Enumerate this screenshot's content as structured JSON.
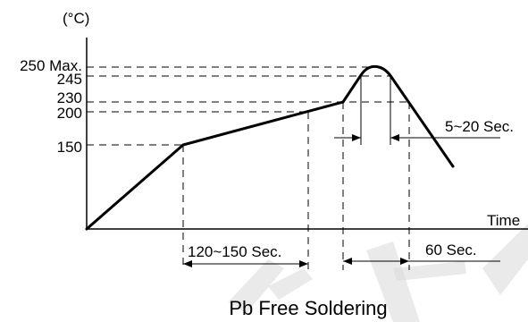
{
  "diagram": {
    "y_unit": "(°C)",
    "temperature_labels": [
      {
        "name": "tick-250-max",
        "text": "250 Max."
      },
      {
        "name": "tick-245",
        "text": "245"
      },
      {
        "name": "tick-230",
        "text": "230"
      },
      {
        "name": "tick-200",
        "text": "200"
      },
      {
        "name": "tick-150",
        "text": "150"
      }
    ],
    "x_axis_label": "Time",
    "durations": {
      "preheat": "120~150 Sec.",
      "peak": "5~20 Sec.",
      "above_liquidus": "60 Sec."
    },
    "caption": "Pb Free Soldering"
  }
}
